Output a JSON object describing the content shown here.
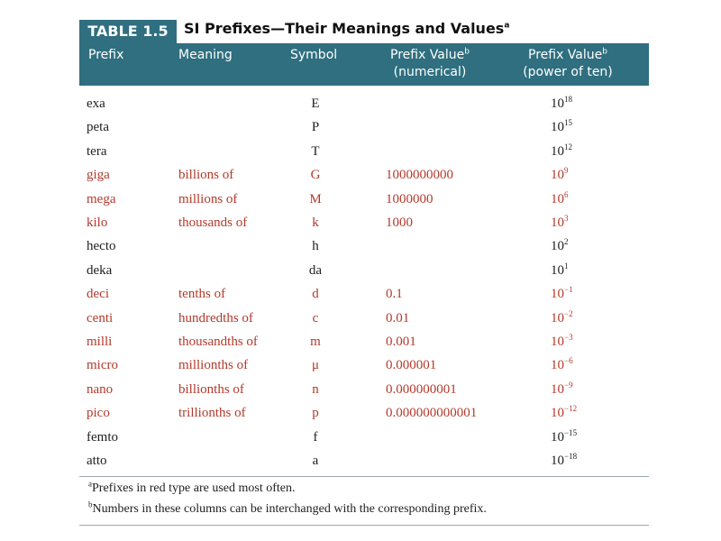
{
  "header": {
    "label": "TABLE 1.5",
    "title": "SI Prefixes—Their Meanings and Values",
    "title_note": "a"
  },
  "columns": [
    {
      "text": "Prefix"
    },
    {
      "text": "Meaning"
    },
    {
      "text": "Symbol"
    },
    {
      "text": "Prefix Value",
      "note": "b",
      "sub": "(numerical)"
    },
    {
      "text": "Prefix Value",
      "note": "b",
      "sub": "(power of ten)"
    }
  ],
  "rows": [
    {
      "prefix": "exa",
      "symbol": "E",
      "power": {
        "base": "10",
        "exponent": "18"
      },
      "color": "#1e1e1e"
    },
    {
      "prefix": "peta",
      "symbol": "P",
      "power": {
        "base": "10",
        "exponent": "15"
      },
      "color": "#1e1e1e"
    },
    {
      "prefix": "tera",
      "symbol": "T",
      "power": {
        "base": "10",
        "exponent": "12"
      },
      "color": "#1e1e1e"
    },
    {
      "prefix": "giga",
      "meaning": "billions of",
      "symbol": "G",
      "numerical": "1000000000",
      "power": {
        "base": "10",
        "exponent": "9"
      },
      "color": "#b23a2c"
    },
    {
      "prefix": "mega",
      "meaning": "millions of",
      "symbol": "M",
      "numerical": "1000000",
      "power": {
        "base": "10",
        "exponent": "6"
      },
      "color": "#b23a2c"
    },
    {
      "prefix": "kilo",
      "meaning": "thousands of",
      "symbol": "k",
      "numerical": "1000",
      "power": {
        "base": "10",
        "exponent": "3"
      },
      "color": "#b23a2c"
    },
    {
      "prefix": "hecto",
      "symbol": "h",
      "power": {
        "base": "10",
        "exponent": "2"
      },
      "color": "#1e1e1e"
    },
    {
      "prefix": "deka",
      "symbol": "da",
      "power": {
        "base": "10",
        "exponent": "1"
      },
      "color": "#1e1e1e"
    },
    {
      "prefix": "deci",
      "meaning": "tenths of",
      "symbol": "d",
      "numerical": "0.1",
      "power": {
        "base": "10",
        "exponent": "−1"
      },
      "color": "#b23a2c"
    },
    {
      "prefix": "centi",
      "meaning": "hundredths of",
      "symbol": "c",
      "numerical": "0.01",
      "power": {
        "base": "10",
        "exponent": "−2"
      },
      "color": "#b23a2c"
    },
    {
      "prefix": "milli",
      "meaning": "thousandths of",
      "symbol": "m",
      "numerical": "0.001",
      "power": {
        "base": "10",
        "exponent": "−3"
      },
      "color": "#b23a2c"
    },
    {
      "prefix": "micro",
      "meaning": "millionths of",
      "symbol": "μ",
      "numerical": "0.000001",
      "power": {
        "base": "10",
        "exponent": "−6"
      },
      "color": "#b23a2c"
    },
    {
      "prefix": "nano",
      "meaning": "billionths of",
      "symbol": "n",
      "numerical": "0.000000001",
      "power": {
        "base": "10",
        "exponent": "−9"
      },
      "color": "#b23a2c"
    },
    {
      "prefix": "pico",
      "meaning": "trillionths of",
      "symbol": "p",
      "numerical": "0.000000000001",
      "power": {
        "base": "10",
        "exponent": "−12"
      },
      "color": "#b23a2c"
    },
    {
      "prefix": "femto",
      "symbol": "f",
      "power": {
        "base": "10",
        "exponent": "−15"
      },
      "color": "#1e1e1e"
    },
    {
      "prefix": "atto",
      "symbol": "a",
      "power": {
        "base": "10",
        "exponent": "−18"
      },
      "color": "#1e1e1e"
    }
  ],
  "footnotes": [
    {
      "mark": "a",
      "text": "Prefixes in red type are used most often."
    },
    {
      "mark": "b",
      "text": "Numbers in these columns can be interchanged with the corresponding prefix."
    }
  ]
}
